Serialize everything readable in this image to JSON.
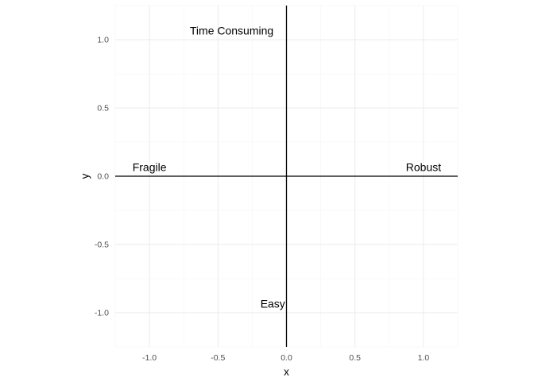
{
  "chart_data": {
    "type": "scatter",
    "title": "",
    "xlabel": "x",
    "ylabel": "y",
    "xlim": [
      -1.25,
      1.25
    ],
    "ylim": [
      -1.25,
      1.25
    ],
    "x_ticks": [
      -1.0,
      -0.5,
      0.0,
      0.5,
      1.0
    ],
    "y_ticks": [
      -1.0,
      -0.5,
      0.0,
      0.5,
      1.0
    ],
    "x_tick_labels": [
      "-1.0",
      "-0.5",
      "0.0",
      "0.5",
      "1.0"
    ],
    "y_tick_labels": [
      "-1.0",
      "-0.5",
      "0.0",
      "0.5",
      "1.0"
    ],
    "grid": true,
    "reference_lines": {
      "horizontal": 0,
      "vertical": 0
    },
    "labels": [
      {
        "text": "Fragile",
        "x": -1.0,
        "y": 0.0
      },
      {
        "text": "Robust",
        "x": 1.0,
        "y": 0.0
      },
      {
        "text": "Time Consuming",
        "x": -0.4,
        "y": 1.0
      },
      {
        "text": "Easy",
        "x": -0.1,
        "y": -1.0
      }
    ]
  }
}
